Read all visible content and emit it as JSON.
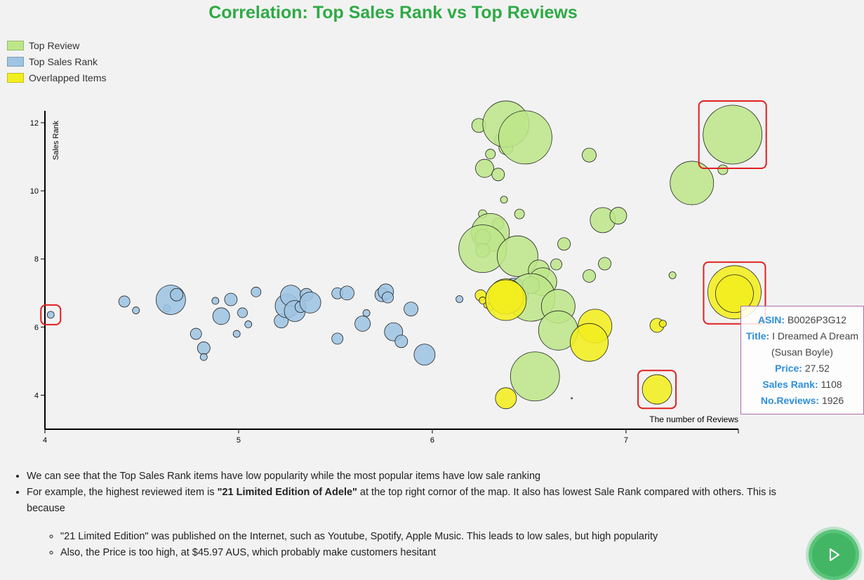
{
  "title": "Correlation: Top Sales Rank vs Top Reviews",
  "legend": [
    {
      "label": "Top Review",
      "color": "#bde68a"
    },
    {
      "label": "Top Sales Rank",
      "color": "#9ec4e3"
    },
    {
      "label": "Overlapped Items",
      "color": "#f2ee1e"
    }
  ],
  "chart_data": {
    "type": "scatter",
    "title": "Correlation: Top Sales Rank vs Top Reviews",
    "xlabel": "The number of Reviews",
    "ylabel": "Sales Rank",
    "xlim": [
      4,
      7.58
    ],
    "ylim": [
      3,
      12.35
    ],
    "x_ticks": [
      "4",
      "5",
      "6",
      "7"
    ],
    "x_tick_values": [
      4,
      5,
      6,
      7
    ],
    "y_ticks": [
      "4",
      "6",
      "8",
      "10",
      "12"
    ],
    "y_tick_values": [
      4,
      6,
      8,
      10,
      12
    ],
    "grid": false,
    "legend_position": "top-left",
    "series": [
      {
        "name": "Top Sales Rank",
        "color": "#9ec4e3",
        "points": [
          {
            "x": 4.03,
            "y": 6.36,
            "r": 5
          },
          {
            "x": 4.41,
            "y": 6.75,
            "r": 8
          },
          {
            "x": 4.47,
            "y": 6.49,
            "r": 5
          },
          {
            "x": 4.63,
            "y": 6.55,
            "r": 5
          },
          {
            "x": 4.65,
            "y": 6.8,
            "r": 21
          },
          {
            "x": 4.68,
            "y": 6.95,
            "r": 9
          },
          {
            "x": 4.78,
            "y": 5.8,
            "r": 8
          },
          {
            "x": 4.82,
            "y": 5.38,
            "r": 9
          },
          {
            "x": 4.82,
            "y": 5.12,
            "r": 5
          },
          {
            "x": 4.88,
            "y": 6.77,
            "r": 5
          },
          {
            "x": 4.91,
            "y": 6.32,
            "r": 12
          },
          {
            "x": 4.96,
            "y": 6.81,
            "r": 9
          },
          {
            "x": 4.99,
            "y": 5.8,
            "r": 5
          },
          {
            "x": 5.02,
            "y": 6.42,
            "r": 7
          },
          {
            "x": 5.05,
            "y": 6.08,
            "r": 5
          },
          {
            "x": 5.09,
            "y": 7.03,
            "r": 7
          },
          {
            "x": 5.22,
            "y": 6.18,
            "r": 10
          },
          {
            "x": 5.25,
            "y": 6.62,
            "r": 17
          },
          {
            "x": 5.27,
            "y": 6.92,
            "r": 15
          },
          {
            "x": 5.29,
            "y": 6.47,
            "r": 15
          },
          {
            "x": 5.32,
            "y": 6.59,
            "r": 8
          },
          {
            "x": 5.35,
            "y": 6.95,
            "r": 9
          },
          {
            "x": 5.37,
            "y": 6.72,
            "r": 15
          },
          {
            "x": 5.51,
            "y": 6.99,
            "r": 8
          },
          {
            "x": 5.51,
            "y": 5.66,
            "r": 8
          },
          {
            "x": 5.56,
            "y": 7.0,
            "r": 10
          },
          {
            "x": 5.64,
            "y": 6.1,
            "r": 11
          },
          {
            "x": 5.66,
            "y": 6.41,
            "r": 5
          },
          {
            "x": 5.74,
            "y": 6.95,
            "r": 10
          },
          {
            "x": 5.76,
            "y": 7.04,
            "r": 11
          },
          {
            "x": 5.77,
            "y": 6.87,
            "r": 8
          },
          {
            "x": 5.8,
            "y": 5.86,
            "r": 13
          },
          {
            "x": 5.84,
            "y": 5.58,
            "r": 9
          },
          {
            "x": 5.89,
            "y": 6.53,
            "r": 10
          },
          {
            "x": 5.96,
            "y": 5.19,
            "r": 15
          },
          {
            "x": 6.14,
            "y": 6.82,
            "r": 5
          },
          {
            "x": 6.42,
            "y": 7.0,
            "r": 21
          }
        ]
      },
      {
        "name": "Top Review",
        "color": "#bde68a",
        "points": [
          {
            "x": 6.24,
            "y": 11.92,
            "r": 10
          },
          {
            "x": 6.3,
            "y": 11.08,
            "r": 7
          },
          {
            "x": 6.35,
            "y": 11.49,
            "r": 8
          },
          {
            "x": 6.38,
            "y": 11.27,
            "r": 10
          },
          {
            "x": 6.38,
            "y": 11.96,
            "r": 33
          },
          {
            "x": 6.48,
            "y": 11.57,
            "r": 38
          },
          {
            "x": 6.27,
            "y": 10.66,
            "r": 13
          },
          {
            "x": 6.34,
            "y": 10.48,
            "r": 9
          },
          {
            "x": 7.55,
            "y": 11.65,
            "r": 42
          },
          {
            "x": 7.5,
            "y": 10.62,
            "r": 7
          },
          {
            "x": 7.34,
            "y": 10.23,
            "r": 31
          },
          {
            "x": 6.37,
            "y": 9.74,
            "r": 5
          },
          {
            "x": 6.45,
            "y": 9.32,
            "r": 7
          },
          {
            "x": 6.26,
            "y": 9.32,
            "r": 6
          },
          {
            "x": 6.34,
            "y": 9.04,
            "r": 8
          },
          {
            "x": 6.3,
            "y": 8.78,
            "r": 27
          },
          {
            "x": 6.26,
            "y": 8.64,
            "r": 11
          },
          {
            "x": 6.26,
            "y": 8.25,
            "r": 10
          },
          {
            "x": 6.26,
            "y": 8.3,
            "r": 34
          },
          {
            "x": 6.44,
            "y": 8.08,
            "r": 29
          },
          {
            "x": 6.55,
            "y": 7.66,
            "r": 15
          },
          {
            "x": 6.57,
            "y": 7.33,
            "r": 20
          },
          {
            "x": 6.51,
            "y": 7.23,
            "r": 12
          },
          {
            "x": 6.51,
            "y": 6.87,
            "r": 34
          },
          {
            "x": 6.65,
            "y": 6.61,
            "r": 24
          },
          {
            "x": 6.65,
            "y": 5.9,
            "r": 28
          },
          {
            "x": 6.53,
            "y": 4.55,
            "r": 35
          },
          {
            "x": 6.64,
            "y": 7.84,
            "r": 8
          },
          {
            "x": 6.68,
            "y": 8.44,
            "r": 9
          },
          {
            "x": 6.81,
            "y": 11.05,
            "r": 10
          },
          {
            "x": 6.88,
            "y": 9.14,
            "r": 18
          },
          {
            "x": 6.96,
            "y": 9.27,
            "r": 12
          },
          {
            "x": 6.81,
            "y": 7.5,
            "r": 9
          },
          {
            "x": 6.89,
            "y": 7.86,
            "r": 9
          },
          {
            "x": 7.24,
            "y": 7.52,
            "r": 5
          },
          {
            "x": 6.72,
            "y": 3.91,
            "r": 1
          }
        ]
      },
      {
        "name": "Overlapped Items",
        "color": "#f2ee1e",
        "points": [
          {
            "x": 6.25,
            "y": 6.93,
            "r": 8
          },
          {
            "x": 6.26,
            "y": 6.78,
            "r": 5
          },
          {
            "x": 6.28,
            "y": 6.64,
            "r": 4
          },
          {
            "x": 6.3,
            "y": 6.58,
            "r": 5
          },
          {
            "x": 6.37,
            "y": 7.02,
            "r": 18
          },
          {
            "x": 6.38,
            "y": 6.9,
            "r": 25
          },
          {
            "x": 6.38,
            "y": 6.79,
            "r": 29
          },
          {
            "x": 6.38,
            "y": 3.91,
            "r": 15
          },
          {
            "x": 6.84,
            "y": 6.03,
            "r": 24
          },
          {
            "x": 6.81,
            "y": 5.55,
            "r": 27
          },
          {
            "x": 7.16,
            "y": 6.05,
            "r": 10
          },
          {
            "x": 7.19,
            "y": 6.1,
            "r": 5
          },
          {
            "x": 7.16,
            "y": 4.17,
            "r": 21
          },
          {
            "x": 7.56,
            "y": 7.02,
            "r": 38
          },
          {
            "x": 7.56,
            "y": 6.98,
            "r": 27
          }
        ]
      }
    ],
    "highlights": [
      {
        "x": 7.55,
        "y": 11.65
      },
      {
        "x": 4.03,
        "y": 6.36
      },
      {
        "x": 7.56,
        "y": 7.0
      },
      {
        "x": 7.16,
        "y": 4.17
      }
    ],
    "highlight_color": "#e02020"
  },
  "tooltip": {
    "asin_label": "ASIN:",
    "asin": "B0026P3G12",
    "title_label": "Title:",
    "title_value": "I Dreamed A Dream (Susan Boyle)",
    "price_label": "Price:",
    "price": "27.52",
    "sales_rank_label": "Sales Rank:",
    "sales_rank": "1108",
    "reviews_label": "No.Reviews:",
    "reviews": "1926"
  },
  "notes": {
    "bullet1": "We can see that the Top Sales Rank items have low popularity while the most popular items have low sale ranking",
    "bullet2_pre": "For example, the highest reviewed item is ",
    "bullet2_bold": "\"21 Limited Edition of Adele\"",
    "bullet2_post": " at the top right cornor of the map. It also has lowest Sale Rank compared with others. This is because",
    "sub1": "\"21 Limited Edition\" was published on the Internet, such as Youtube, Spotify, Apple Music. This leads to low sales, but high popularity",
    "sub2": "Also, the Price is too high, at $45.97 AUS, which probably make customers hesitant"
  },
  "play_icon": "play-icon",
  "accent_color": "#2eaa45"
}
